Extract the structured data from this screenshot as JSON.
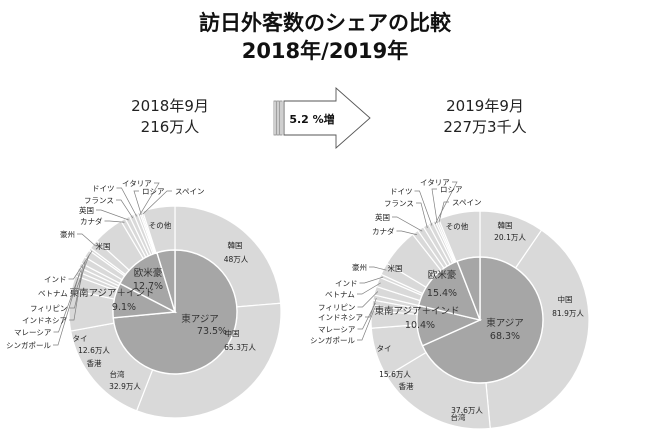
{
  "title": {
    "line1": "訪日外客数のシェアの比較",
    "line2": "2018年/2019年"
  },
  "left_header": {
    "period": "2018年9月",
    "total": "216万人"
  },
  "right_header": {
    "period": "2019年9月",
    "total": "227万3千人"
  },
  "arrow": {
    "label": "5.2 %増"
  },
  "colors": {
    "outer": "#d9d9d9",
    "inner": "#a6a6a6",
    "line": "#ffffff",
    "leader": "#7f7f7f"
  },
  "chart_data": [
    {
      "type": "pie",
      "title": "2018年9月",
      "inner_ring": [
        {
          "label": "東アジア",
          "value": 73.5,
          "text": "73.5%"
        },
        {
          "label": "東南アジア＋インド",
          "value": 9.1,
          "text": "9.1%"
        },
        {
          "label": "欧米豪",
          "value": 12.7,
          "text": "12.7%"
        },
        {
          "label": "",
          "value": 4.7,
          "text": ""
        }
      ],
      "outer_ring": [
        {
          "label": "韓国",
          "value": 48.0,
          "text": "48万人"
        },
        {
          "label": "中国",
          "value": 65.3,
          "text": "65.3万人"
        },
        {
          "label": "台湾",
          "value": 32.9,
          "text": "32.9万人"
        },
        {
          "label": "香港",
          "value": 12.6,
          "text": "12.6万人"
        },
        {
          "label": "タイ",
          "value": 4.5,
          "text": ""
        },
        {
          "label": "シンガポール",
          "value": 1.4,
          "text": ""
        },
        {
          "label": "マレーシア",
          "value": 1.4,
          "text": ""
        },
        {
          "label": "インドネシア",
          "value": 1.4,
          "text": ""
        },
        {
          "label": "フィリピン",
          "value": 2.2,
          "text": ""
        },
        {
          "label": "ベトナム",
          "value": 2.4,
          "text": ""
        },
        {
          "label": "インド",
          "value": 0.8,
          "text": ""
        },
        {
          "label": "豪州",
          "value": 3.0,
          "text": ""
        },
        {
          "label": "米国",
          "value": 9.5,
          "text": ""
        },
        {
          "label": "カナダ",
          "value": 1.5,
          "text": ""
        },
        {
          "label": "英国",
          "value": 1.5,
          "text": ""
        },
        {
          "label": "フランス",
          "value": 1.4,
          "text": ""
        },
        {
          "label": "ドイツ",
          "value": 1.2,
          "text": ""
        },
        {
          "label": "イタリア",
          "value": 0.7,
          "text": ""
        },
        {
          "label": "ロシア",
          "value": 0.5,
          "text": ""
        },
        {
          "label": "スペイン",
          "value": 0.5,
          "text": ""
        },
        {
          "label": "その他",
          "value": 10.0,
          "text": ""
        }
      ]
    },
    {
      "type": "pie",
      "title": "2019年9月",
      "inner_ring": [
        {
          "label": "東アジア",
          "value": 68.3,
          "text": "68.3%"
        },
        {
          "label": "東南アジア＋インド",
          "value": 10.4,
          "text": "10.4%"
        },
        {
          "label": "欧米豪",
          "value": 15.4,
          "text": "15.4%"
        },
        {
          "label": "",
          "value": 5.9,
          "text": ""
        }
      ],
      "outer_ring": [
        {
          "label": "韓国",
          "value": 20.1,
          "text": "20.1万人"
        },
        {
          "label": "中国",
          "value": 81.9,
          "text": "81.9万人"
        },
        {
          "label": "台湾",
          "value": 37.6,
          "text": "37.6万人"
        },
        {
          "label": "香港",
          "value": 15.6,
          "text": "15.6万人"
        },
        {
          "label": "タイ",
          "value": 5.5,
          "text": ""
        },
        {
          "label": "シンガポール",
          "value": 1.6,
          "text": ""
        },
        {
          "label": "マレーシア",
          "value": 1.6,
          "text": ""
        },
        {
          "label": "インドネシア",
          "value": 1.6,
          "text": ""
        },
        {
          "label": "フィリピン",
          "value": 2.7,
          "text": ""
        },
        {
          "label": "ベトナム",
          "value": 3.0,
          "text": ""
        },
        {
          "label": "インド",
          "value": 1.0,
          "text": ""
        },
        {
          "label": "豪州",
          "value": 3.8,
          "text": ""
        },
        {
          "label": "米国",
          "value": 12.0,
          "text": ""
        },
        {
          "label": "カナダ",
          "value": 2.0,
          "text": ""
        },
        {
          "label": "英国",
          "value": 2.0,
          "text": ""
        },
        {
          "label": "フランス",
          "value": 1.8,
          "text": ""
        },
        {
          "label": "ドイツ",
          "value": 1.5,
          "text": ""
        },
        {
          "label": "イタリア",
          "value": 0.8,
          "text": ""
        },
        {
          "label": "ロシア",
          "value": 0.6,
          "text": ""
        },
        {
          "label": "スペイン",
          "value": 0.6,
          "text": ""
        },
        {
          "label": "その他",
          "value": 13.0,
          "text": ""
        }
      ]
    }
  ]
}
